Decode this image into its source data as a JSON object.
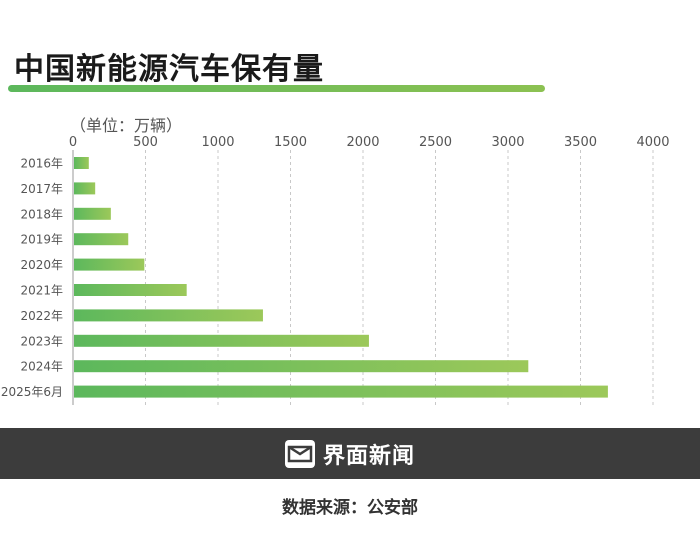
{
  "header": {
    "title": "中国新能源汽车保有量"
  },
  "chart_data": {
    "type": "bar",
    "orientation": "horizontal",
    "unit_label": "（单位：万辆）",
    "categories": [
      "2016年",
      "2017年",
      "2018年",
      "2019年",
      "2020年",
      "2021年",
      "2022年",
      "2023年",
      "2024年",
      "2025年6月"
    ],
    "values": [
      109,
      153,
      261,
      381,
      492,
      784,
      1310,
      2041,
      3140,
      3689
    ],
    "xlim": [
      0,
      4000
    ],
    "x_ticks": [
      "0",
      "500",
      "1000",
      "1500",
      "2000",
      "2500",
      "3000",
      "3500",
      "4000"
    ],
    "grid": "vertical dashed",
    "colors": {
      "bar_start": "#5cb85c",
      "bar_end": "#9cc85a"
    }
  },
  "footer": {
    "brand": "界面新闻",
    "brand_icon": "jiemian-logo-icon",
    "source": "数据来源：公安部",
    "colors": {
      "band": "#3c3c3c"
    }
  }
}
